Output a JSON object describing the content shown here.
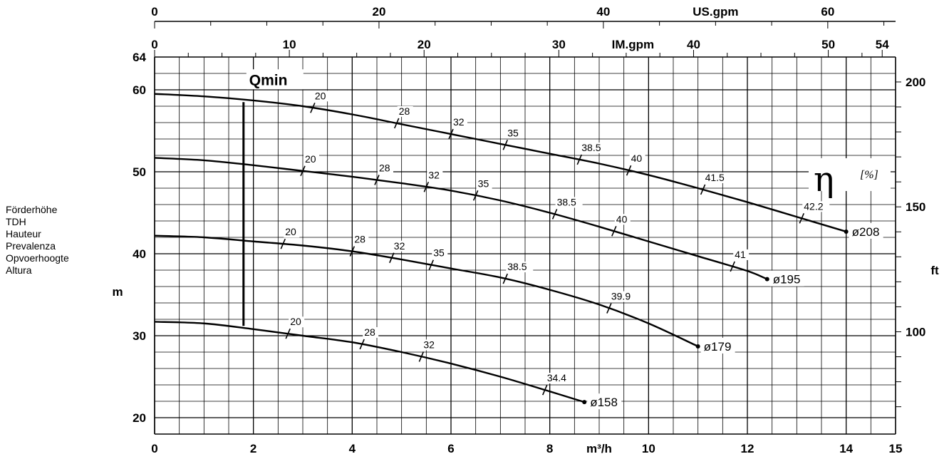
{
  "chart_data": {
    "type": "line",
    "title": "",
    "ylabel_lines": [
      "Förderhöhe",
      "TDH",
      "Hauteur",
      "Prevalenza",
      "Opvoerhoogte",
      "Altura"
    ],
    "ylabel_unit_left": "m",
    "ylabel_unit_right": "ft",
    "xlabel_bottom": "m³/h",
    "xlabel_im": "IM.gpm",
    "xlabel_us": "US.gpm",
    "qmin_label": "Qmin",
    "qmin_x": 1.8,
    "efficiency_symbol": "η",
    "efficiency_unit": "[%]",
    "xlim": [
      0,
      15
    ],
    "ylim": [
      18,
      64
    ],
    "x_ticks": [
      "0",
      "2",
      "4",
      "6",
      "8",
      "10",
      "12",
      "14",
      "15"
    ],
    "y_ticks": [
      "20",
      "30",
      "40",
      "50",
      "60",
      "64"
    ],
    "ft_ticks": [
      "100",
      "150",
      "200"
    ],
    "im_ticks": [
      "0",
      "10",
      "20",
      "30",
      "40",
      "50",
      "54"
    ],
    "us_ticks": [
      "0",
      "20",
      "40",
      "60"
    ],
    "series": [
      {
        "name": "ø208",
        "x": [
          0,
          1,
          2,
          3,
          4,
          5,
          6,
          7,
          8,
          9,
          10,
          11,
          12,
          13,
          14
        ],
        "y": [
          59.5,
          59.2,
          58.7,
          58.0,
          57.0,
          55.8,
          54.6,
          53.4,
          52.2,
          51.0,
          49.6,
          48.0,
          46.3,
          44.5,
          42.7
        ],
        "efficiency_marks": [
          {
            "x": 3.2,
            "label": "20"
          },
          {
            "x": 4.9,
            "label": "28"
          },
          {
            "x": 6.0,
            "label": "32"
          },
          {
            "x": 7.1,
            "label": "35"
          },
          {
            "x": 8.6,
            "label": "38.5"
          },
          {
            "x": 9.6,
            "label": "40"
          },
          {
            "x": 11.1,
            "label": "41.5"
          },
          {
            "x": 13.1,
            "label": "42.2"
          }
        ]
      },
      {
        "name": "ø195",
        "x": [
          0,
          1,
          2,
          3,
          4,
          5,
          6,
          7,
          8,
          9,
          10,
          11,
          12,
          12.4
        ],
        "y": [
          51.7,
          51.4,
          50.8,
          50.1,
          49.4,
          48.6,
          47.7,
          46.5,
          45.0,
          43.3,
          41.5,
          39.7,
          37.9,
          36.9
        ],
        "efficiency_marks": [
          {
            "x": 3.0,
            "label": "20"
          },
          {
            "x": 4.5,
            "label": "28"
          },
          {
            "x": 5.5,
            "label": "32"
          },
          {
            "x": 6.5,
            "label": "35"
          },
          {
            "x": 8.1,
            "label": "38.5"
          },
          {
            "x": 9.3,
            "label": "40"
          },
          {
            "x": 11.7,
            "label": "41"
          }
        ]
      },
      {
        "name": "ø179",
        "x": [
          0,
          1,
          2,
          3,
          4,
          5,
          6,
          7,
          8,
          9,
          10,
          11
        ],
        "y": [
          42.2,
          42.0,
          41.5,
          41.0,
          40.3,
          39.3,
          38.2,
          37.1,
          35.6,
          33.8,
          31.5,
          28.7
        ],
        "efficiency_marks": [
          {
            "x": 2.6,
            "label": "20"
          },
          {
            "x": 4.0,
            "label": "28"
          },
          {
            "x": 4.8,
            "label": "32"
          },
          {
            "x": 5.6,
            "label": "35"
          },
          {
            "x": 7.1,
            "label": "38.5"
          },
          {
            "x": 9.2,
            "label": "39.9"
          }
        ]
      },
      {
        "name": "ø158",
        "x": [
          0,
          1,
          2,
          3,
          4,
          5,
          6,
          7,
          8,
          8.7
        ],
        "y": [
          31.7,
          31.5,
          30.8,
          30.0,
          29.2,
          28.0,
          26.6,
          25.0,
          23.2,
          21.9
        ],
        "efficiency_marks": [
          {
            "x": 2.7,
            "label": "20"
          },
          {
            "x": 4.2,
            "label": "28"
          },
          {
            "x": 5.4,
            "label": "32"
          },
          {
            "x": 7.9,
            "label": "34.4"
          }
        ]
      }
    ]
  }
}
